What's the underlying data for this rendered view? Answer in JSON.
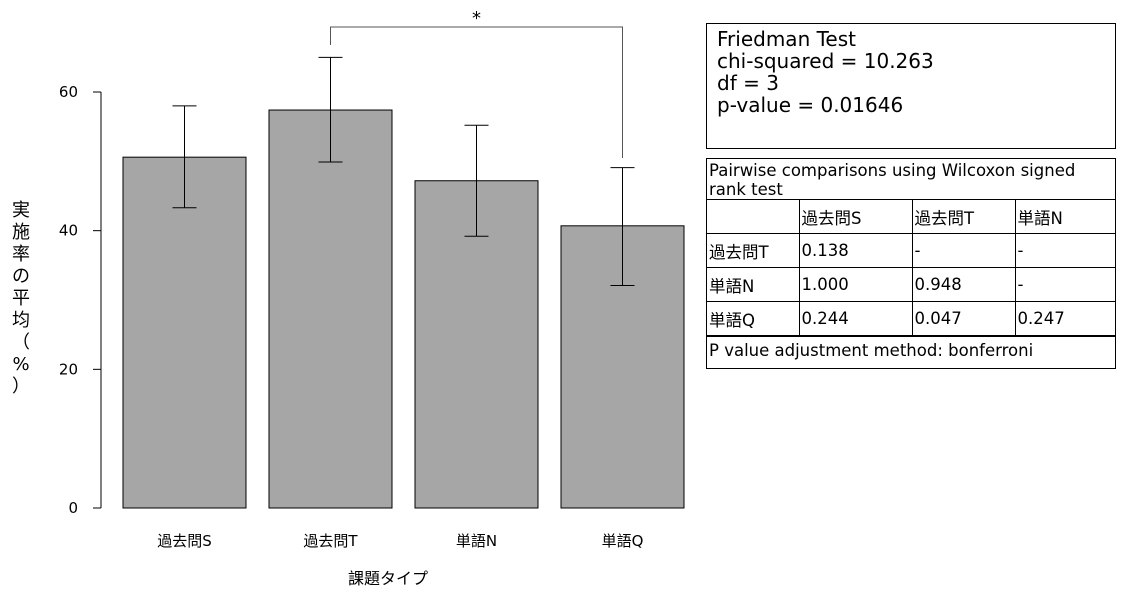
{
  "chart_data": {
    "type": "bar",
    "categories": [
      "過去問S",
      "過去問T",
      "単語N",
      "単語Q"
    ],
    "values": [
      50.6,
      57.4,
      47.2,
      40.7
    ],
    "error_low": [
      43.3,
      49.9,
      39.2,
      32.1
    ],
    "error_high": [
      58.0,
      65.0,
      55.2,
      49.1
    ],
    "xlabel": "課題タイプ",
    "ylabel": "実施率の平均（%）",
    "ylim": [
      0,
      60
    ],
    "yticks": [
      0,
      20,
      40,
      60
    ],
    "bar_color": "#a6a6a6",
    "grid": false,
    "significance": {
      "from": "過去問T",
      "to": "単語Q",
      "label": "*"
    }
  },
  "friedman": {
    "title": "Friedman Test",
    "chi": "chi-squared = 10.263",
    "df": "df = 3",
    "p": "p-value = 0.01646"
  },
  "pairwise": {
    "title": "Pairwise comparisons using Wilcoxon signed rank test",
    "headers": [
      "",
      "過去問S",
      "過去問T",
      "単語N"
    ],
    "rows": [
      [
        "過去問T",
        "0.138",
        "-",
        "-"
      ],
      [
        "単語N",
        "1.000",
        "0.948",
        "-"
      ],
      [
        "単語Q",
        "0.244",
        "0.047",
        "0.247"
      ]
    ],
    "footer": "P value adjustment method: bonferroni"
  }
}
